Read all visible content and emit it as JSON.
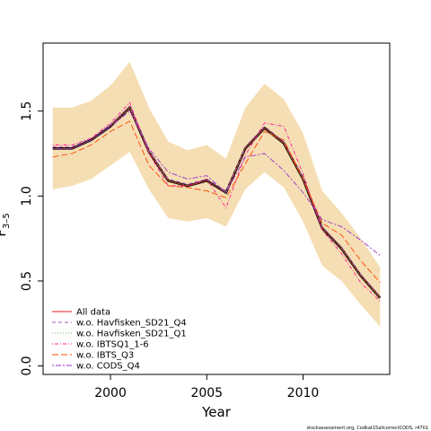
{
  "chart_data": {
    "type": "line",
    "xlabel": "Year",
    "ylabel": "F",
    "ylabel_subscript": "3–5",
    "xlim": [
      1996.5,
      2014.5
    ],
    "ylim": [
      -0.05,
      1.9
    ],
    "xticks": [
      2000,
      2005,
      2010
    ],
    "yticks": [
      0.0,
      0.5,
      1.0,
      1.5
    ],
    "ytick_labels": [
      "0.0",
      "0.5",
      "1.0",
      "1.5"
    ],
    "x": [
      1997,
      1998,
      1999,
      2000,
      2001,
      2002,
      2003,
      2004,
      2005,
      2006,
      2007,
      2008,
      2009,
      2010,
      2011,
      2012,
      2013,
      2014
    ],
    "confidence_band": {
      "color": "#f5deb3",
      "lower": [
        1.04,
        1.06,
        1.1,
        1.18,
        1.26,
        1.04,
        0.87,
        0.85,
        0.87,
        0.82,
        1.04,
        1.14,
        1.05,
        0.85,
        0.59,
        0.5,
        0.36,
        0.23
      ],
      "upper": [
        1.52,
        1.52,
        1.56,
        1.65,
        1.79,
        1.52,
        1.32,
        1.27,
        1.3,
        1.22,
        1.52,
        1.66,
        1.57,
        1.37,
        1.03,
        0.9,
        0.75,
        0.58
      ]
    },
    "main_line": {
      "color": "#000000",
      "values": [
        1.28,
        1.28,
        1.33,
        1.41,
        1.52,
        1.26,
        1.09,
        1.06,
        1.09,
        1.02,
        1.28,
        1.4,
        1.31,
        1.1,
        0.81,
        0.69,
        0.53,
        0.4
      ]
    },
    "series": [
      {
        "name": "All data",
        "color": "#e41a1c",
        "dash": "solid",
        "values": [
          1.28,
          1.28,
          1.33,
          1.41,
          1.52,
          1.26,
          1.09,
          1.06,
          1.09,
          1.02,
          1.28,
          1.4,
          1.31,
          1.1,
          0.81,
          0.69,
          0.53,
          0.4
        ]
      },
      {
        "name": "w.o. Havfisken_SD21_Q4",
        "color": "#9b59b6",
        "dash": "dashed",
        "values": [
          1.29,
          1.29,
          1.34,
          1.42,
          1.53,
          1.27,
          1.1,
          1.07,
          1.1,
          1.03,
          1.29,
          1.41,
          1.32,
          1.11,
          0.82,
          0.7,
          0.54,
          0.41
        ]
      },
      {
        "name": "w.o. Havfisken_SD21_Q1",
        "color": "#66bd63",
        "dash": "dotted",
        "values": [
          1.28,
          1.28,
          1.33,
          1.41,
          1.52,
          1.26,
          1.09,
          1.06,
          1.09,
          1.02,
          1.28,
          1.4,
          1.31,
          1.1,
          0.81,
          0.69,
          0.53,
          0.4
        ]
      },
      {
        "name": "w.o. IBTSQ1_1-6",
        "color": "#ff1493",
        "dash": "dotdash",
        "values": [
          1.3,
          1.3,
          1.34,
          1.43,
          1.55,
          1.25,
          1.06,
          1.06,
          1.1,
          0.93,
          1.24,
          1.43,
          1.41,
          1.13,
          0.8,
          0.66,
          0.49,
          0.38
        ]
      },
      {
        "name": "w.o. IBTS_Q3",
        "color": "#ff4500",
        "dash": "longdash",
        "values": [
          1.23,
          1.25,
          1.3,
          1.38,
          1.44,
          1.18,
          1.06,
          1.05,
          1.03,
          0.99,
          1.19,
          1.38,
          1.33,
          1.1,
          0.84,
          0.77,
          0.62,
          0.49
        ]
      },
      {
        "name": "w.o. CODS_Q4",
        "color": "#9932cc",
        "dash": "twodash",
        "values": [
          1.28,
          1.28,
          1.33,
          1.41,
          1.5,
          1.28,
          1.14,
          1.1,
          1.12,
          1.02,
          1.23,
          1.25,
          1.15,
          1.02,
          0.86,
          0.82,
          0.74,
          0.65
        ]
      }
    ],
    "legend_position": "bottom-left",
    "grid": false
  },
  "footer_text": "stockassessment.org, Codkat15allcorrectCODS, r4701"
}
